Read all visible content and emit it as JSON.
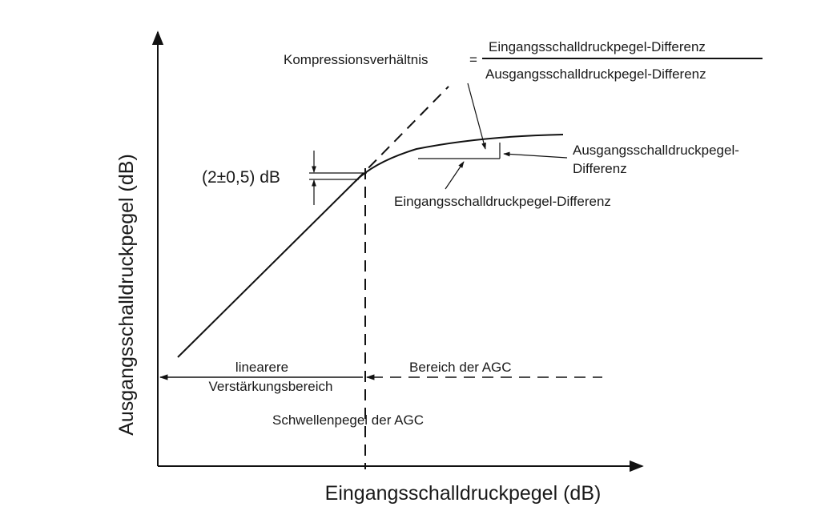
{
  "axes": {
    "y_label": "Ausgangsschalldruckpegel (dB)",
    "x_label": "Eingangsschalldruckpegel (dB)"
  },
  "formula": {
    "lhs": "Kompressionsverhältnis",
    "equals": "=",
    "numerator": "Eingangsschalldruckpegel-Differenz",
    "denominator": "Ausgangsschalldruckpegel-Differenz"
  },
  "annotations": {
    "knee_tolerance": "(2±0,5) dB",
    "output_difference_line1": "Ausgangsschalldruckpegel-",
    "output_difference_line2": "Differenz",
    "input_difference": "Eingangsschalldruckpegel-Differenz"
  },
  "regions": {
    "linear_line1": "linearere",
    "linear_line2": "Verstärkungsbereich",
    "agc_range": "Bereich der AGC",
    "threshold": "Schwellenpegel der AGC"
  }
}
